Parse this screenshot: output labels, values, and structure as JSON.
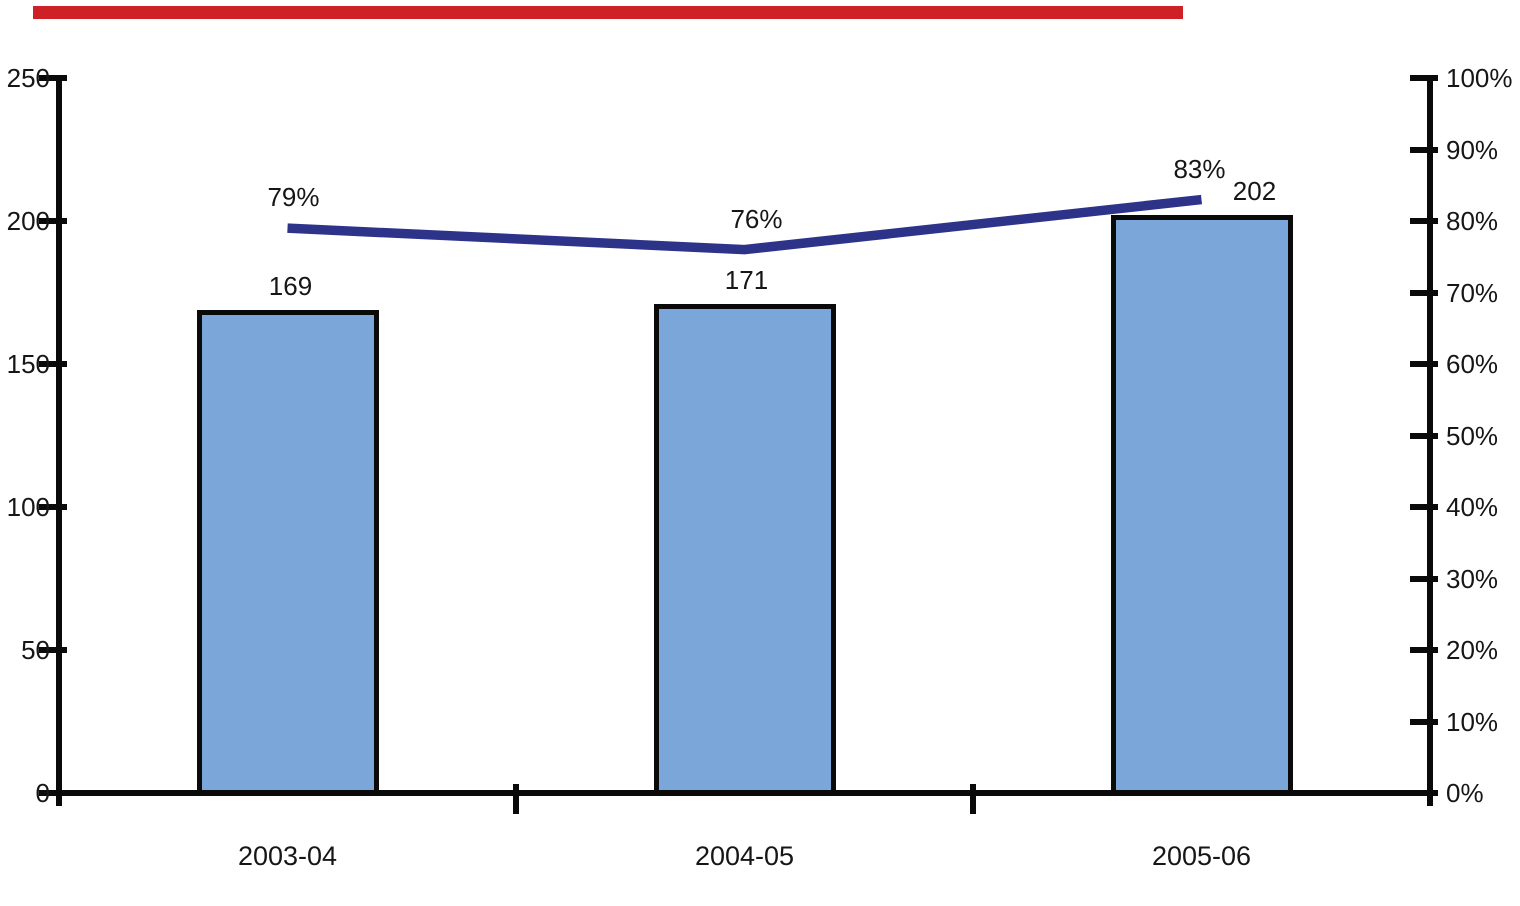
{
  "page": {
    "background_color": "#ffffff",
    "accent_bar_color": "#ce2127",
    "axis_color": "#0a0a0a",
    "text_color": "#161616"
  },
  "chart_data": {
    "type": "bar+line",
    "title": "",
    "xlabel": "",
    "ylabel_left": "",
    "ylabel_right": "",
    "grid": false,
    "legend": false,
    "categories": [
      "2003-04",
      "2004-05",
      "2005-06"
    ],
    "series": [
      {
        "name": "count-bars",
        "type": "bar",
        "axis": "left",
        "values": [
          169,
          171,
          202
        ],
        "data_labels": [
          "169",
          "171",
          "202"
        ],
        "fill_color": "#7aa6d9",
        "border_color": "#0a0a0a"
      },
      {
        "name": "percentage-line",
        "type": "line",
        "axis": "right",
        "values": [
          79,
          76,
          83
        ],
        "data_labels": [
          "79%",
          "76%",
          "83%"
        ],
        "line_color": "#2d3389"
      }
    ],
    "left_axis": {
      "min": 0,
      "max": 250,
      "step": 50,
      "tick_labels": [
        "0",
        "50",
        "100",
        "150",
        "200",
        "250"
      ]
    },
    "right_axis": {
      "min": 0,
      "max": 100,
      "step": 10,
      "tick_labels": [
        "0%",
        "10%",
        "20%",
        "30%",
        "40%",
        "50%",
        "60%",
        "70%",
        "80%",
        "90%",
        "100%"
      ]
    }
  }
}
